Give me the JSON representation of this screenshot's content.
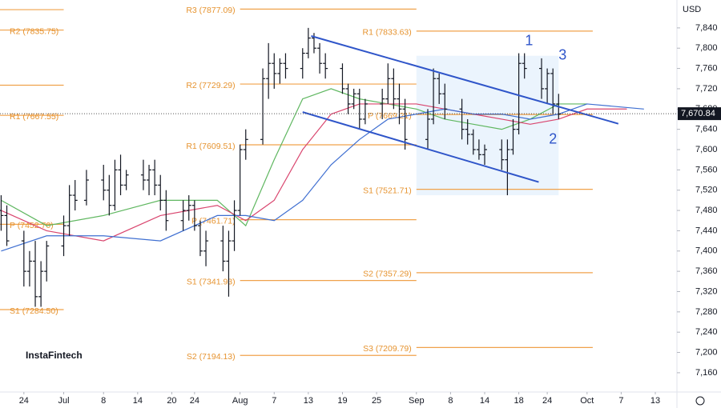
{
  "chart_data": {
    "type": "ohlc",
    "currency": "USD",
    "watermark": "InstaFintech",
    "xlim": [
      171.8,
      290.8
    ],
    "ylim": [
      7122,
      7895
    ],
    "xticks": [
      {
        "value": 176,
        "label": "24"
      },
      {
        "value": 183,
        "label": "Jul"
      },
      {
        "value": 190,
        "label": "8"
      },
      {
        "value": 196,
        "label": "14"
      },
      {
        "value": 202,
        "label": "20"
      },
      {
        "value": 206,
        "label": "24"
      },
      {
        "value": 214,
        "label": "Aug"
      },
      {
        "value": 220,
        "label": "7"
      },
      {
        "value": 226,
        "label": "13"
      },
      {
        "value": 232,
        "label": "19"
      },
      {
        "value": 238,
        "label": "25"
      },
      {
        "value": 245,
        "label": "Sep"
      },
      {
        "value": 251,
        "label": "8"
      },
      {
        "value": 257,
        "label": "14"
      },
      {
        "value": 263,
        "label": "18"
      },
      {
        "value": 268,
        "label": "24"
      },
      {
        "value": 275,
        "label": "Oct"
      },
      {
        "value": 281,
        "label": "7"
      },
      {
        "value": 287,
        "label": "13"
      }
    ],
    "yticks": [
      {
        "value": 7160,
        "label": "7,160"
      },
      {
        "value": 7200,
        "label": "7,200"
      },
      {
        "value": 7240,
        "label": "7,240"
      },
      {
        "value": 7280,
        "label": "7,280"
      },
      {
        "value": 7320,
        "label": "7,320"
      },
      {
        "value": 7360,
        "label": "7,360"
      },
      {
        "value": 7400,
        "label": "7,400"
      },
      {
        "value": 7440,
        "label": "7,440"
      },
      {
        "value": 7480,
        "label": "7,480"
      },
      {
        "value": 7520,
        "label": "7,520"
      },
      {
        "value": 7560,
        "label": "7,560"
      },
      {
        "value": 7600,
        "label": "7,600"
      },
      {
        "value": 7640,
        "label": "7,640"
      },
      {
        "value": 7680,
        "label": "7,680"
      },
      {
        "value": 7720,
        "label": "7,720"
      },
      {
        "value": 7760,
        "label": "7,760"
      },
      {
        "value": 7800,
        "label": "7,800"
      },
      {
        "value": 7840,
        "label": "7,840"
      }
    ],
    "bars": {
      "color": "#131722",
      "x": [
        172,
        173,
        176,
        177,
        178,
        179,
        180,
        183,
        184,
        185,
        187,
        190,
        191,
        192,
        193,
        194,
        197,
        198,
        199,
        200,
        201,
        204,
        205,
        206,
        207,
        208,
        211,
        212,
        213,
        214,
        215,
        218,
        219,
        220,
        221,
        222,
        225,
        226,
        227,
        228,
        229,
        232,
        233,
        234,
        235,
        236,
        239,
        240,
        241,
        242,
        243,
        247,
        248,
        249,
        250,
        253,
        254,
        255,
        256,
        257,
        260,
        261,
        262,
        263,
        264,
        267,
        268,
        269,
        270
      ],
      "open": [
        7480,
        7470,
        7420,
        7360,
        7380,
        7310,
        7360,
        7410,
        7450,
        7510,
        7500,
        7540,
        7520,
        7490,
        7560,
        7530,
        7550,
        7540,
        7560,
        7530,
        7500,
        7460,
        7480,
        7490,
        7450,
        7400,
        7420,
        7380,
        7420,
        7480,
        7600,
        7620,
        7740,
        7770,
        7750,
        7770,
        7760,
        7790,
        7820,
        7800,
        7770,
        7760,
        7720,
        7690,
        7710,
        7660,
        7690,
        7700,
        7740,
        7700,
        7680,
        7620,
        7660,
        7740,
        7710,
        7680,
        7640,
        7630,
        7600,
        7590,
        7600,
        7580,
        7600,
        7640,
        7770,
        7760,
        7720,
        7750,
        7690
      ],
      "high": [
        7510,
        7490,
        7440,
        7400,
        7420,
        7380,
        7420,
        7470,
        7530,
        7540,
        7560,
        7570,
        7550,
        7580,
        7590,
        7560,
        7580,
        7570,
        7580,
        7550,
        7520,
        7500,
        7510,
        7500,
        7460,
        7440,
        7450,
        7440,
        7500,
        7610,
        7640,
        7760,
        7810,
        7790,
        7780,
        7790,
        7800,
        7840,
        7830,
        7810,
        7790,
        7770,
        7730,
        7720,
        7720,
        7700,
        7720,
        7770,
        7760,
        7730,
        7700,
        7680,
        7760,
        7750,
        7730,
        7700,
        7660,
        7640,
        7620,
        7610,
        7620,
        7620,
        7660,
        7790,
        7790,
        7780,
        7760,
        7760,
        7710
      ],
      "low": [
        7440,
        7410,
        7330,
        7330,
        7290,
        7290,
        7340,
        7390,
        7430,
        7480,
        7490,
        7500,
        7470,
        7480,
        7510,
        7520,
        7520,
        7510,
        7510,
        7480,
        7440,
        7440,
        7460,
        7440,
        7390,
        7370,
        7360,
        7310,
        7400,
        7470,
        7580,
        7610,
        7700,
        7720,
        7730,
        7740,
        7740,
        7780,
        7790,
        7750,
        7740,
        7710,
        7670,
        7680,
        7640,
        7650,
        7660,
        7690,
        7680,
        7650,
        7600,
        7600,
        7650,
        7690,
        7660,
        7620,
        7610,
        7590,
        7580,
        7570,
        7560,
        7510,
        7590,
        7630,
        7740,
        7700,
        7690,
        7670,
        7660
      ],
      "close": [
        7470,
        7420,
        7360,
        7380,
        7310,
        7360,
        7410,
        7450,
        7510,
        7500,
        7540,
        7520,
        7490,
        7560,
        7530,
        7550,
        7540,
        7560,
        7530,
        7500,
        7460,
        7480,
        7490,
        7450,
        7400,
        7420,
        7380,
        7420,
        7480,
        7600,
        7620,
        7740,
        7770,
        7750,
        7770,
        7760,
        7790,
        7820,
        7800,
        7770,
        7760,
        7720,
        7690,
        7710,
        7660,
        7690,
        7700,
        7740,
        7700,
        7680,
        7620,
        7660,
        7740,
        7710,
        7680,
        7640,
        7630,
        7600,
        7590,
        7600,
        7580,
        7600,
        7640,
        7770,
        7760,
        7720,
        7750,
        7690,
        7670
      ]
    },
    "series": [
      {
        "color": "#5fb760",
        "x": [
          172,
          180,
          190,
          200,
          210,
          215,
          220,
          225,
          230,
          235,
          240,
          245,
          250,
          255,
          260,
          265,
          270,
          275
        ],
        "values": [
          7500,
          7450,
          7470,
          7500,
          7500,
          7450,
          7580,
          7700,
          7720,
          7700,
          7690,
          7680,
          7660,
          7650,
          7640,
          7660,
          7690,
          7690
        ]
      },
      {
        "color": "#d9456e",
        "x": [
          172,
          180,
          190,
          200,
          210,
          215,
          220,
          225,
          230,
          235,
          240,
          245,
          250,
          255,
          260,
          265,
          270,
          275,
          282
        ],
        "values": [
          7480,
          7440,
          7420,
          7470,
          7490,
          7460,
          7500,
          7600,
          7670,
          7690,
          7690,
          7690,
          7680,
          7670,
          7660,
          7650,
          7660,
          7680,
          7680
        ]
      },
      {
        "color": "#3f6fd1",
        "x": [
          172,
          180,
          190,
          200,
          210,
          215,
          220,
          225,
          230,
          235,
          240,
          245,
          250,
          255,
          260,
          265,
          270,
          275,
          285
        ],
        "values": [
          7400,
          7430,
          7430,
          7420,
          7470,
          7470,
          7460,
          7500,
          7570,
          7620,
          7660,
          7670,
          7680,
          7670,
          7670,
          7660,
          7670,
          7690,
          7680
        ]
      }
    ],
    "levels": [
      {
        "x": [
          171.8,
          183
        ],
        "color": "#f0a24b",
        "items": [
          {
            "value": 7876,
            "label": null
          },
          {
            "value": 7835.75,
            "label": "R2 (7835.75)"
          },
          {
            "value": 7727,
            "label": null
          },
          {
            "value": 7667.55,
            "label": "R1 (7667.55)"
          },
          {
            "value": 7452.7,
            "label": "P (7452.70)"
          },
          {
            "value": 7284.5,
            "label": "S1 (7284.50)"
          }
        ]
      },
      {
        "x": [
          214,
          245
        ],
        "color": "#f0a24b",
        "items": [
          {
            "value": 7877.09,
            "label": "R3 (7877.09)"
          },
          {
            "value": 7729.29,
            "label": "R2 (7729.29)"
          },
          {
            "value": 7609.51,
            "label": "R1 (7609.51)"
          },
          {
            "value": 7461.71,
            "label": "P (7461.71)"
          },
          {
            "value": 7341.93,
            "label": "S1 (7341.93)"
          },
          {
            "value": 7194.13,
            "label": "S2 (7194.13)"
          }
        ]
      },
      {
        "x": [
          245,
          276
        ],
        "color": "#f0a24b",
        "items": [
          {
            "value": 7833.63,
            "label": "R1 (7833.63)"
          },
          {
            "value": 7669.21,
            "label": "P (7669.21)"
          },
          {
            "value": 7521.71,
            "label": "S1 (7521.71)"
          },
          {
            "value": 7357.29,
            "label": "S2 (7357.29)"
          },
          {
            "value": 7209.79,
            "label": "S3 (7209.79)"
          }
        ]
      }
    ],
    "channels": [
      {
        "color": "#2f55c9",
        "x": [
          226.5,
          280.5
        ],
        "values": [
          7824,
          7651
        ]
      },
      {
        "color": "#2f55c9",
        "x": [
          225,
          266.5
        ],
        "values": [
          7674,
          7536
        ]
      }
    ],
    "range_box": {
      "x": [
        245,
        270
      ],
      "values": [
        7510,
        7785
      ]
    },
    "annotations": [
      {
        "text": "1",
        "x": 264.8,
        "y": 7813
      },
      {
        "text": "3",
        "x": 270.7,
        "y": 7785
      },
      {
        "text": "2",
        "x": 269,
        "y": 7619
      }
    ],
    "last_price": {
      "value": 7670.84,
      "label": "7,670.84"
    }
  }
}
